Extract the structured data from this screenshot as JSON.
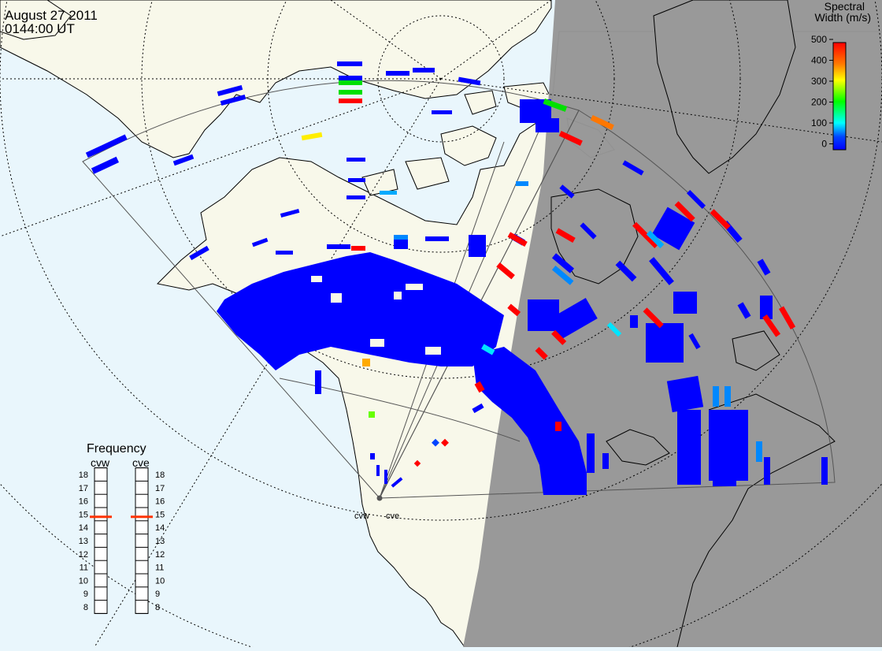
{
  "header": {
    "date": "August 27 2011",
    "time": "0144:00 UT"
  },
  "colorbar": {
    "title_line1": "Spectral",
    "title_line2": "Width (m/s)",
    "ticks": [
      "500",
      "400",
      "300",
      "200",
      "100",
      "0"
    ],
    "colors": [
      "#ff0000",
      "#ffff00",
      "#00ff00",
      "#00ffff",
      "#0000ff"
    ]
  },
  "frequency_panel": {
    "title": "Frequency",
    "radars": [
      {
        "name": "cvw",
        "selected_mhz": 14.8
      },
      {
        "name": "cve",
        "selected_mhz": 14.8
      }
    ],
    "scale": [
      "18",
      "17",
      "16",
      "15",
      "14",
      "13",
      "12",
      "11",
      "10",
      "9",
      "8"
    ]
  },
  "radar_site": {
    "labels": [
      "cvw",
      "cve"
    ]
  },
  "colors": {
    "ocean": "#e9f6fc",
    "land": "#f8f8ea",
    "night": "#969696",
    "echo_low": "#0000ff",
    "echo_high": "#ff0000"
  }
}
